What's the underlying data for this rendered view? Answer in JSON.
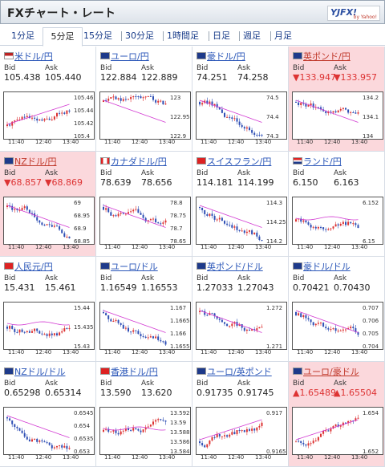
{
  "header": {
    "title": "FXチャート・レート",
    "logo": "YJFX!",
    "logo_sub": "by Yahoo!"
  },
  "tabs": [
    "1分足",
    "5分足",
    "15分足",
    "30分足",
    "1時間足",
    "日足",
    "週足",
    "月足"
  ],
  "active_tab": 1,
  "labels": {
    "bid": "Bid",
    "ask": "Ask"
  },
  "x_ticks": [
    "11:40",
    "12:40",
    "13:40"
  ],
  "cards": [
    {
      "pair": "米ドル/円",
      "bid": "105.438",
      "ask": "105.440",
      "up": null,
      "flag": "us",
      "yticks": [
        "105.46",
        "105.44",
        "105.42",
        "105.4"
      ],
      "trend": "up",
      "pink": false
    },
    {
      "pair": "ユーロ/円",
      "bid": "122.884",
      "ask": "122.889",
      "up": null,
      "flag": "eu",
      "yticks": [
        "123",
        "122.95",
        "122.9"
      ],
      "trend": "down",
      "pink": false
    },
    {
      "pair": "豪ドル/円",
      "bid": "74.251",
      "ask": "74.258",
      "up": null,
      "flag": "au",
      "yticks": [
        "74.5",
        "74.4",
        "74.3"
      ],
      "trend": "down",
      "pink": false
    },
    {
      "pair": "英ポンド/円",
      "bid": "▼133.947",
      "ask": "▼133.957",
      "up": false,
      "flag": "uk",
      "yticks": [
        "134.2",
        "134.1",
        "134"
      ],
      "trend": "down",
      "pink": true
    },
    {
      "pair": "NZドル/円",
      "bid": "▼68.857",
      "ask": "▼68.869",
      "up": false,
      "flag": "nz",
      "yticks": [
        "69",
        "68.95",
        "68.9",
        "68.85"
      ],
      "trend": "down",
      "pink": true
    },
    {
      "pair": "カナダドル/円",
      "bid": "78.639",
      "ask": "78.656",
      "up": null,
      "flag": "ca",
      "yticks": [
        "78.8",
        "78.75",
        "78.7",
        "78.65"
      ],
      "trend": "down",
      "pink": false
    },
    {
      "pair": "スイスフラン/円",
      "bid": "114.181",
      "ask": "114.199",
      "up": null,
      "flag": "ch",
      "yticks": [
        "114.3",
        "114.25",
        "114.2"
      ],
      "trend": "down",
      "pink": false
    },
    {
      "pair": "ランド/円",
      "bid": "6.150",
      "ask": "6.163",
      "up": null,
      "flag": "za",
      "yticks": [
        "6.152",
        "6.15"
      ],
      "trend": "flat",
      "pink": false
    },
    {
      "pair": "人民元/円",
      "bid": "15.431",
      "ask": "15.461",
      "up": null,
      "flag": "cn",
      "yticks": [
        "15.44",
        "15.435",
        "15.43"
      ],
      "trend": "flat",
      "pink": false
    },
    {
      "pair": "ユーロ/ドル",
      "bid": "1.16549",
      "ask": "1.16553",
      "up": null,
      "flag": "eu",
      "yticks": [
        "1.167",
        "1.1665",
        "1.166",
        "1.1655"
      ],
      "trend": "down",
      "pink": false
    },
    {
      "pair": "英ポンド/ドル",
      "bid": "1.27033",
      "ask": "1.27043",
      "up": null,
      "flag": "uk",
      "yticks": [
        "1.272",
        "1.271"
      ],
      "trend": "down",
      "pink": false
    },
    {
      "pair": "豪ドル/ドル",
      "bid": "0.70421",
      "ask": "0.70430",
      "up": null,
      "flag": "au",
      "yticks": [
        "0.707",
        "0.706",
        "0.705",
        "0.704"
      ],
      "trend": "down",
      "pink": false
    },
    {
      "pair": "NZドル/ドル",
      "bid": "0.65298",
      "ask": "0.65314",
      "up": null,
      "flag": "nz",
      "yticks": [
        "0.6545",
        "0.654",
        "0.6535",
        "0.653"
      ],
      "trend": "down",
      "pink": false
    },
    {
      "pair": "香港ドル/円",
      "bid": "13.590",
      "ask": "13.620",
      "up": null,
      "flag": "hk",
      "yticks": [
        "13.592",
        "13.59",
        "13.588",
        "13.586",
        "13.584"
      ],
      "trend": "flat",
      "pink": false
    },
    {
      "pair": "ユーロ/英ポンド",
      "bid": "0.91735",
      "ask": "0.91745",
      "up": null,
      "flag": "eu",
      "yticks": [
        "0.917",
        "0.9165"
      ],
      "trend": "up",
      "pink": false
    },
    {
      "pair": "ユーロ/豪ドル",
      "bid": "▲1.65489",
      "ask": "▲1.65504",
      "up": true,
      "flag": "eu",
      "yticks": [
        "1.654",
        "1.652"
      ],
      "trend": "up",
      "pink": true
    }
  ],
  "colors": {
    "up": "#d33",
    "down": "#2f4fb5",
    "ma": "#d23ad2",
    "pink": "#fbd8dc",
    "link": "#2a56b8"
  }
}
